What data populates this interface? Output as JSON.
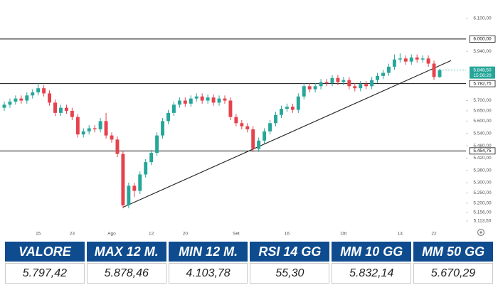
{
  "chart_data": {
    "type": "candlestick",
    "up_color": "#26a69a",
    "down_color": "#e5424d",
    "categories": [
      null,
      null,
      null,
      null,
      null,
      null,
      "15",
      null,
      null,
      null,
      null,
      null,
      "23",
      null,
      null,
      null,
      null,
      null,
      null,
      "Ago",
      null,
      null,
      null,
      null,
      null,
      null,
      "12",
      null,
      null,
      null,
      null,
      null,
      "20",
      null,
      null,
      null,
      null,
      null,
      null,
      null,
      null,
      "Set",
      null,
      null,
      null,
      null,
      null,
      null,
      null,
      null,
      "16",
      null,
      null,
      null,
      null,
      null,
      null,
      null,
      null,
      null,
      "Ott",
      null,
      null,
      null,
      null,
      null,
      null,
      null,
      null,
      null,
      "14",
      null,
      null,
      null,
      null,
      null,
      "22",
      null
    ],
    "open": [
      5665,
      5680,
      5695,
      5710,
      5700,
      5725,
      5740,
      5760,
      5735,
      5690,
      5640,
      5665,
      5650,
      5620,
      5535,
      5550,
      5565,
      5560,
      5600,
      5530,
      5510,
      5440,
      5190,
      5285,
      5260,
      5340,
      5400,
      5445,
      5530,
      5600,
      5640,
      5680,
      5700,
      5685,
      5710,
      5720,
      5700,
      5715,
      5690,
      5710,
      5700,
      5620,
      5590,
      5575,
      5560,
      5465,
      5505,
      5550,
      5590,
      5630,
      5660,
      5670,
      5655,
      5720,
      5770,
      5755,
      5770,
      5790,
      5785,
      5810,
      5790,
      5800,
      5770,
      5760,
      5780,
      5770,
      5800,
      5820,
      5835,
      5865,
      5900,
      5905,
      5890,
      5910,
      5900,
      5905,
      5880,
      5815
    ],
    "high": [
      5695,
      5710,
      5725,
      5725,
      5740,
      5755,
      5785,
      5775,
      5750,
      5705,
      5680,
      5680,
      5665,
      5635,
      5565,
      5580,
      5580,
      5615,
      5640,
      5545,
      5525,
      5455,
      5300,
      5300,
      5355,
      5415,
      5460,
      5545,
      5615,
      5655,
      5695,
      5715,
      5715,
      5725,
      5735,
      5735,
      5730,
      5730,
      5725,
      5725,
      5715,
      5635,
      5605,
      5590,
      5575,
      5520,
      5565,
      5605,
      5645,
      5675,
      5685,
      5685,
      5735,
      5785,
      5785,
      5785,
      5805,
      5805,
      5825,
      5825,
      5815,
      5815,
      5785,
      5795,
      5795,
      5815,
      5835,
      5850,
      5880,
      5925,
      5930,
      5920,
      5925,
      5925,
      5920,
      5920,
      5895,
      5855
    ],
    "low": [
      5650,
      5665,
      5680,
      5685,
      5685,
      5710,
      5725,
      5720,
      5675,
      5625,
      5625,
      5635,
      5605,
      5520,
      5520,
      5535,
      5545,
      5545,
      5515,
      5495,
      5425,
      5175,
      5175,
      5230,
      5245,
      5325,
      5385,
      5430,
      5515,
      5585,
      5625,
      5665,
      5670,
      5670,
      5695,
      5685,
      5685,
      5675,
      5675,
      5685,
      5605,
      5575,
      5560,
      5545,
      5450,
      5450,
      5490,
      5535,
      5575,
      5615,
      5645,
      5640,
      5640,
      5705,
      5740,
      5740,
      5755,
      5770,
      5770,
      5775,
      5775,
      5755,
      5745,
      5745,
      5755,
      5755,
      5785,
      5805,
      5820,
      5850,
      5885,
      5875,
      5875,
      5885,
      5885,
      5865,
      5800,
      5810
    ],
    "close": [
      5680,
      5695,
      5710,
      5700,
      5725,
      5740,
      5760,
      5735,
      5690,
      5640,
      5665,
      5650,
      5620,
      5535,
      5550,
      5565,
      5560,
      5600,
      5530,
      5510,
      5440,
      5190,
      5285,
      5260,
      5340,
      5400,
      5445,
      5530,
      5600,
      5640,
      5680,
      5700,
      5685,
      5710,
      5720,
      5700,
      5715,
      5690,
      5710,
      5700,
      5620,
      5590,
      5575,
      5560,
      5465,
      5505,
      5550,
      5590,
      5630,
      5660,
      5670,
      5655,
      5720,
      5770,
      5755,
      5770,
      5790,
      5785,
      5810,
      5790,
      5800,
      5770,
      5760,
      5780,
      5770,
      5800,
      5820,
      5835,
      5865,
      5900,
      5905,
      5890,
      5910,
      5900,
      5905,
      5880,
      5815,
      5848.5
    ],
    "ylim": [
      5030,
      6190
    ],
    "yticks": [
      {
        "value": 6100,
        "label": "6.100,00"
      },
      {
        "value": 5940,
        "label": "5.940,00"
      },
      {
        "value": 5700,
        "label": "5.700,00"
      },
      {
        "value": 5650,
        "label": "5.650,00"
      },
      {
        "value": 5600,
        "label": "5.600,00"
      },
      {
        "value": 5540,
        "label": "5.540,00"
      },
      {
        "value": 5480,
        "label": "5.480,00"
      },
      {
        "value": 5420,
        "label": "5.420,00"
      },
      {
        "value": 5360,
        "label": "5.360,00"
      },
      {
        "value": 5300,
        "label": "5.300,00"
      },
      {
        "value": 5250,
        "label": "5.250,00"
      },
      {
        "value": 5200,
        "label": "5.200,00"
      },
      {
        "value": 5156,
        "label": "5.156,00"
      },
      {
        "value": 5113.5,
        "label": "5.113,50"
      }
    ],
    "levels": [
      {
        "value": 6000,
        "label": "6.000,00"
      },
      {
        "value": 5782.75,
        "label": "5.782,75"
      },
      {
        "value": 5454.75,
        "label": "5.454,75"
      }
    ],
    "current": {
      "value": 5848.5,
      "label": "5.848,50",
      "time": "15:56:20"
    },
    "trendline": {
      "x": [
        21,
        79
      ],
      "values": [
        5180,
        5895
      ]
    }
  },
  "table": {
    "headers": [
      "VALORE",
      "MAX 12 M.",
      "MIN 12 M.",
      "RSI 14 GG",
      "MM 10 GG",
      "MM 50 GG"
    ],
    "rows": [
      [
        "5.797,42",
        "5.878,46",
        "4.103,78",
        "55,30",
        "5.832,14",
        "5.670,29"
      ]
    ]
  }
}
